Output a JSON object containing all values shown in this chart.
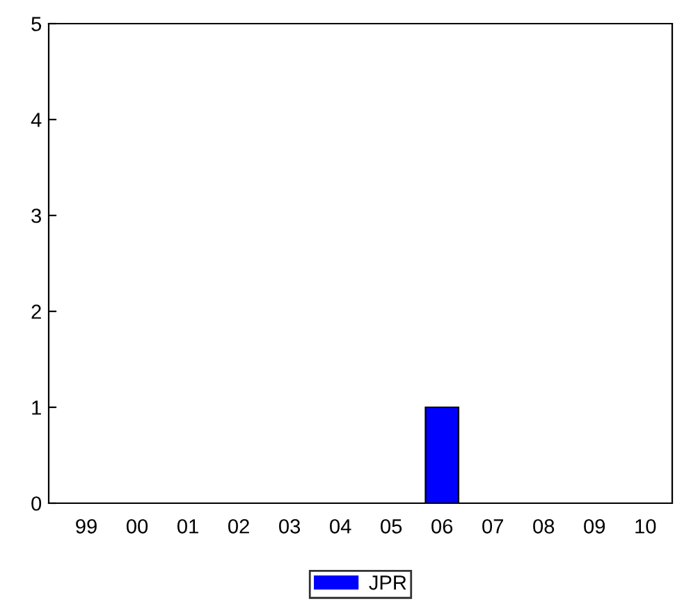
{
  "chart_data": {
    "type": "bar",
    "categories": [
      "99",
      "00",
      "01",
      "02",
      "03",
      "04",
      "05",
      "06",
      "07",
      "08",
      "09",
      "10"
    ],
    "series": [
      {
        "name": "JPR",
        "color": "#0000ff",
        "values": [
          0,
          0,
          0,
          0,
          0,
          0,
          0,
          1,
          0,
          0,
          0,
          0
        ]
      }
    ],
    "ylim": [
      0,
      5
    ],
    "yticks": [
      0,
      1,
      2,
      3,
      4,
      5
    ],
    "grid": false,
    "legend": "bottom"
  }
}
